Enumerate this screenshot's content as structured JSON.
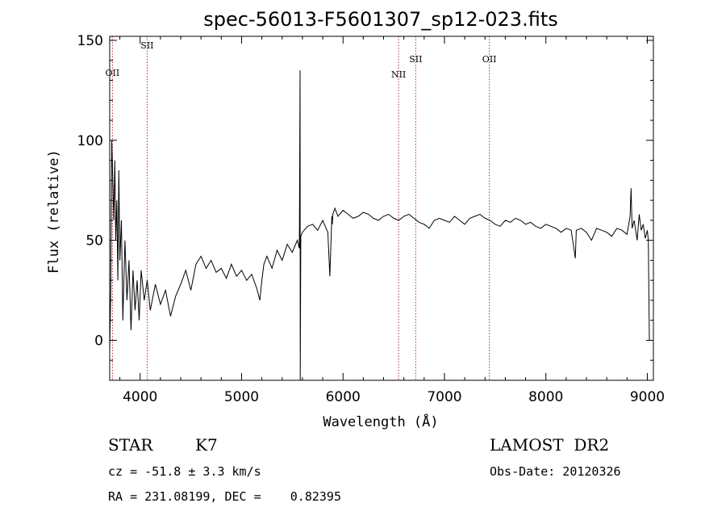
{
  "chart_data": {
    "type": "line",
    "title": "spec-56013-F5601307_sp12-023.fits",
    "xlabel": "Wavelength (Å)",
    "ylabel": "Flux (relative)",
    "xlim": [
      3700,
      9060
    ],
    "ylim": [
      -20,
      152
    ],
    "xticks": [
      4000,
      5000,
      6000,
      7000,
      8000,
      9000
    ],
    "yticks": [
      0,
      50,
      100,
      150
    ],
    "grid": false,
    "series": [
      {
        "color": "#000000",
        "x": [
          3700,
          3710,
          3720,
          3730,
          3740,
          3750,
          3760,
          3770,
          3780,
          3790,
          3800,
          3815,
          3830,
          3850,
          3870,
          3890,
          3910,
          3930,
          3950,
          3970,
          3990,
          4010,
          4040,
          4070,
          4100,
          4150,
          4200,
          4250,
          4300,
          4350,
          4400,
          4450,
          4500,
          4550,
          4600,
          4650,
          4700,
          4750,
          4800,
          4850,
          4900,
          4950,
          5000,
          5050,
          5100,
          5150,
          5180,
          5200,
          5220,
          5250,
          5300,
          5350,
          5400,
          5450,
          5500,
          5550,
          5570,
          5577,
          5578,
          5584,
          5600,
          5650,
          5700,
          5750,
          5800,
          5850,
          5870,
          5890,
          5895,
          5900,
          5920,
          5950,
          6000,
          6050,
          6100,
          6150,
          6200,
          6250,
          6300,
          6350,
          6400,
          6450,
          6500,
          6550,
          6600,
          6650,
          6700,
          6750,
          6800,
          6850,
          6900,
          6950,
          7000,
          7050,
          7100,
          7150,
          7200,
          7250,
          7300,
          7350,
          7400,
          7450,
          7500,
          7550,
          7600,
          7650,
          7700,
          7750,
          7800,
          7850,
          7900,
          7950,
          8000,
          8050,
          8100,
          8150,
          8200,
          8250,
          8290,
          8300,
          8350,
          8400,
          8450,
          8500,
          8550,
          8600,
          8650,
          8700,
          8750,
          8800,
          8830,
          8840,
          8850,
          8870,
          8900,
          8920,
          8940,
          8960,
          8980,
          9000,
          9010,
          9020
        ],
        "y": [
          -5,
          25,
          100,
          80,
          60,
          90,
          50,
          70,
          30,
          85,
          40,
          60,
          10,
          50,
          20,
          40,
          5,
          35,
          15,
          30,
          10,
          35,
          20,
          30,
          15,
          28,
          18,
          25,
          12,
          22,
          28,
          35,
          25,
          38,
          42,
          36,
          40,
          34,
          36,
          31,
          38,
          32,
          35,
          30,
          33,
          26,
          20,
          30,
          38,
          42,
          36,
          45,
          40,
          48,
          44,
          50,
          46,
          135,
          -28,
          52,
          54,
          57,
          58,
          55,
          60,
          54,
          32,
          62,
          58,
          63,
          66,
          62,
          65,
          63,
          61,
          62,
          64,
          63,
          61,
          60,
          62,
          63,
          61,
          60,
          62,
          63,
          61,
          59,
          58,
          56,
          60,
          61,
          60,
          59,
          62,
          60,
          58,
          61,
          62,
          63,
          61,
          60,
          58,
          57,
          60,
          59,
          61,
          60,
          58,
          59,
          57,
          56,
          58,
          57,
          56,
          54,
          56,
          55,
          41,
          55,
          56,
          54,
          50,
          56,
          55,
          54,
          52,
          56,
          55,
          53,
          62,
          76,
          56,
          60,
          50,
          63,
          55,
          58,
          51,
          55,
          50,
          0
        ]
      }
    ],
    "vertical_lines": [
      {
        "x": 3727,
        "label": "OII"
      },
      {
        "x": 4069,
        "label": "SII"
      },
      {
        "x": 6548,
        "label": "NII"
      },
      {
        "x": 6717,
        "label": "SII"
      },
      {
        "x": 7443,
        "label": "OII"
      }
    ]
  },
  "info": {
    "object_type": "STAR",
    "subclass": "K7",
    "survey": "LAMOST  DR2",
    "cz": "cz = -51.8 ± 3.3 km/s",
    "obs_date": "Obs-Date: 20120326",
    "coords": "RA = 231.08199, DEC =    0.82395"
  }
}
